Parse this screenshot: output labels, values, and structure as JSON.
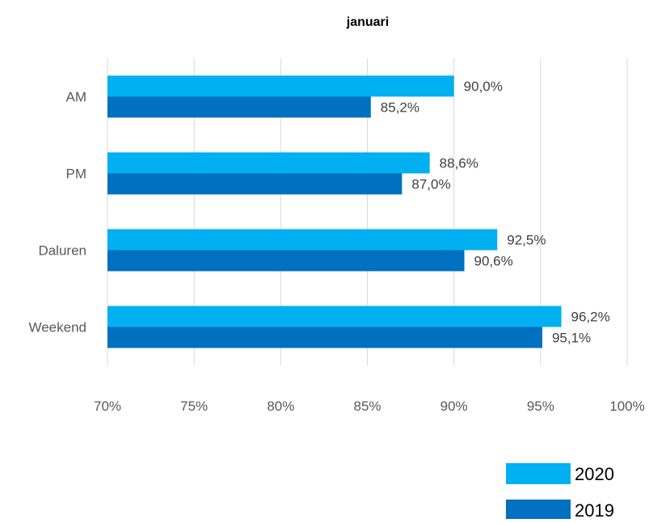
{
  "chart_data": {
    "type": "bar",
    "orientation": "horizontal",
    "title": "januari",
    "categories": [
      "AM",
      "PM",
      "Daluren",
      "Weekend"
    ],
    "series": [
      {
        "name": "2020",
        "values": [
          90.0,
          88.6,
          92.5,
          96.2
        ],
        "labels": [
          "90,0%",
          "88,6%",
          "92,5%",
          "96,2%"
        ],
        "color": "#00b0f0"
      },
      {
        "name": "2019",
        "values": [
          85.2,
          87.0,
          90.6,
          95.1
        ],
        "labels": [
          "85,2%",
          "87,0%",
          "90,6%",
          "95,1%"
        ],
        "color": "#0070c0"
      }
    ],
    "xlim": [
      70,
      100
    ],
    "x_ticks": [
      70,
      75,
      80,
      85,
      90,
      95,
      100
    ],
    "x_tick_labels": [
      "70%",
      "75%",
      "80%",
      "85%",
      "90%",
      "95%",
      "100%"
    ],
    "xlabel": "",
    "ylabel": "",
    "grid": "vertical",
    "grid_color": "#d9d9d9",
    "legend_position": "bottom-right"
  }
}
